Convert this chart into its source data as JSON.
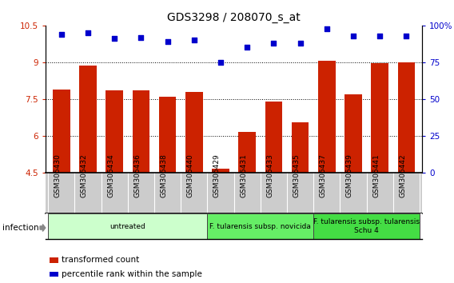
{
  "title": "GDS3298 / 208070_s_at",
  "samples": [
    "GSM305430",
    "GSM305432",
    "GSM305434",
    "GSM305436",
    "GSM305438",
    "GSM305440",
    "GSM305429",
    "GSM305431",
    "GSM305433",
    "GSM305435",
    "GSM305437",
    "GSM305439",
    "GSM305441",
    "GSM305442"
  ],
  "bar_values": [
    7.9,
    8.85,
    7.85,
    7.85,
    7.6,
    7.8,
    4.65,
    6.15,
    7.4,
    6.55,
    9.05,
    7.7,
    8.95,
    9.0
  ],
  "dot_values": [
    94,
    95,
    91,
    92,
    89,
    90,
    75,
    85,
    88,
    88,
    98,
    93,
    93,
    93
  ],
  "bar_color": "#cc2200",
  "dot_color": "#0000cc",
  "ylim_left": [
    4.5,
    10.5
  ],
  "ylim_right": [
    0,
    100
  ],
  "yticks_left": [
    4.5,
    6.0,
    7.5,
    9.0,
    10.5
  ],
  "yticks_right": [
    0,
    25,
    50,
    75,
    100
  ],
  "ytick_labels_left": [
    "4.5",
    "6",
    "7.5",
    "9",
    "10.5"
  ],
  "ytick_labels_right": [
    "0",
    "25",
    "50",
    "75",
    "100%"
  ],
  "grid_values": [
    6.0,
    7.5,
    9.0
  ],
  "groups": [
    {
      "label": "untreated",
      "start": 0,
      "end": 6,
      "color": "#ccffcc"
    },
    {
      "label": "F. tularensis subsp. novicida",
      "start": 6,
      "end": 10,
      "color": "#66ee66"
    },
    {
      "label": "F. tularensis subsp. tularensis\nSchu 4",
      "start": 10,
      "end": 14,
      "color": "#44dd44"
    }
  ],
  "infection_label": "infection",
  "legend_bar_label": "transformed count",
  "legend_dot_label": "percentile rank within the sample",
  "bar_width": 0.65,
  "title_fontsize": 10,
  "tick_fontsize": 7.5,
  "sample_fontsize": 6.5,
  "group_fontsize": 6.5,
  "legend_fontsize": 7.5
}
